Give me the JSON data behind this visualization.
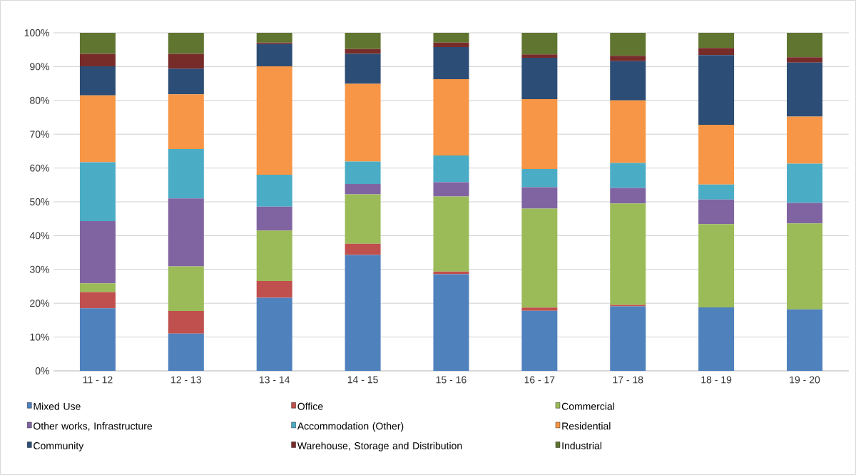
{
  "chart_data": {
    "type": "bar",
    "stacked": true,
    "grid": "y",
    "legend": "bottom",
    "categories": [
      "11 - 12",
      "12 - 13",
      "13 - 14",
      "14 - 15",
      "15 - 16",
      "16 - 17",
      "17 - 18",
      "18 - 19",
      "19 - 20"
    ],
    "ylim": [
      0,
      100
    ],
    "yticks": [
      {
        "value": 0,
        "label": "0%"
      },
      {
        "value": 10,
        "label": "10%"
      },
      {
        "value": 20,
        "label": "20%"
      },
      {
        "value": 30,
        "label": "30%"
      },
      {
        "value": 40,
        "label": "40%"
      },
      {
        "value": 50,
        "label": "50%"
      },
      {
        "value": 60,
        "label": "60%"
      },
      {
        "value": 70,
        "label": "70%"
      },
      {
        "value": 80,
        "label": "80%"
      },
      {
        "value": 90,
        "label": "90%"
      },
      {
        "value": 100,
        "label": "100%"
      }
    ],
    "series": [
      {
        "name": "Mixed Use",
        "color": "#4f81bd",
        "values": [
          18.5,
          11.0,
          21.6,
          34.3,
          28.6,
          17.8,
          19.1,
          18.8,
          18.2
        ]
      },
      {
        "name": "Office",
        "color": "#c0504d",
        "values": [
          4.8,
          6.7,
          5.0,
          3.3,
          0.8,
          0.9,
          0.4,
          0,
          0
        ]
      },
      {
        "name": "Commercial",
        "color": "#9bbb59",
        "values": [
          2.6,
          13.2,
          14.9,
          14.6,
          22.2,
          29.3,
          30.0,
          24.6,
          25.4
        ]
      },
      {
        "name": "Other works, Infrastructure",
        "color": "#8064a2",
        "values": [
          18.4,
          20.1,
          7.1,
          3.1,
          4.2,
          6.3,
          4.6,
          7.3,
          6.1
        ]
      },
      {
        "name": "Accommodation (Other)",
        "color": "#4bacc6",
        "values": [
          17.4,
          14.6,
          9.4,
          6.6,
          7.9,
          5.4,
          7.4,
          4.4,
          11.6
        ]
      },
      {
        "name": "Residential",
        "color": "#f79646",
        "values": [
          19.8,
          16.2,
          32.1,
          23.0,
          22.6,
          20.7,
          18.5,
          17.7,
          13.9
        ]
      },
      {
        "name": "Community",
        "color": "#2c4d75",
        "values": [
          8.6,
          7.6,
          6.6,
          8.9,
          9.5,
          12.2,
          11.6,
          20.6,
          16.0
        ]
      },
      {
        "name": "Warehouse, Storage and Distribution",
        "color": "#772c2a",
        "values": [
          3.7,
          4.4,
          0.4,
          1.4,
          1.3,
          1.0,
          1.6,
          2.1,
          1.6
        ]
      },
      {
        "name": "Industrial",
        "color": "#5f7530",
        "values": [
          6.2,
          6.2,
          2.9,
          4.8,
          2.9,
          6.4,
          6.8,
          4.5,
          7.2
        ]
      }
    ]
  }
}
